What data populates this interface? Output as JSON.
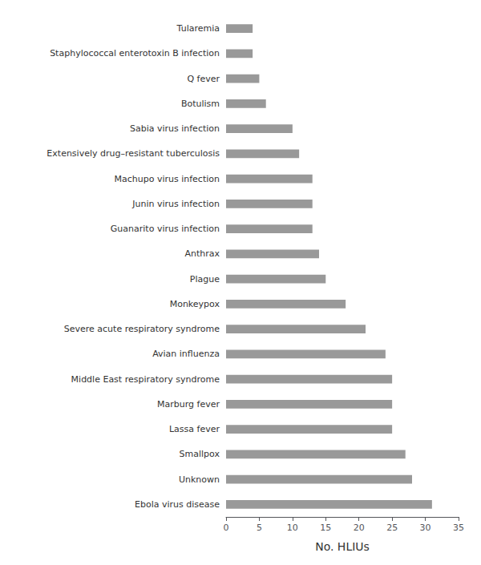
{
  "chart_data": {
    "type": "bar",
    "orientation": "horizontal",
    "categories": [
      "Tularemia",
      "Staphylococcal enterotoxin B infection",
      "Q fever",
      "Botulism",
      "Sabia virus infection",
      "Extensively drug–resistant tuberculosis",
      "Machupo virus infection",
      "Junin virus infection",
      "Guanarito virus infection",
      "Anthrax",
      "Plague",
      "Monkeypox",
      "Severe acute respiratory syndrome",
      "Avian influenza",
      "Middle East respiratory syndrome",
      "Marburg fever",
      "Lassa fever",
      "Smallpox",
      "Unknown",
      "Ebola virus disease"
    ],
    "values": [
      4,
      4,
      5,
      6,
      10,
      11,
      13,
      13,
      13,
      14,
      15,
      18,
      21,
      24,
      25,
      25,
      25,
      27,
      28,
      31
    ],
    "color": "#999999",
    "xlabel": "No. HLIUs",
    "xlim": [
      0,
      35
    ],
    "xticks": [
      0,
      5,
      10,
      15,
      20,
      25,
      30,
      35
    ],
    "grid": false
  }
}
